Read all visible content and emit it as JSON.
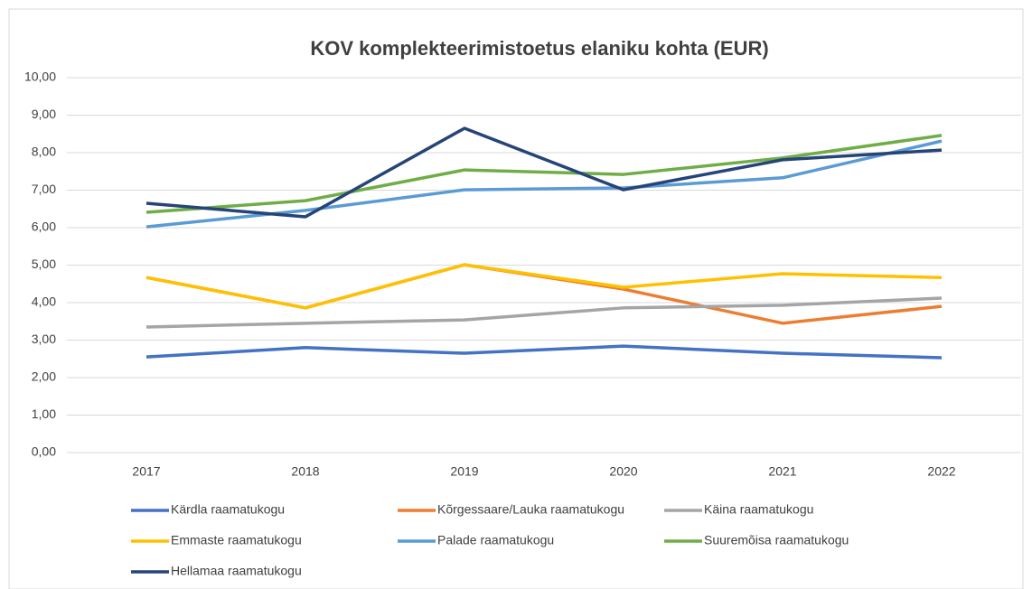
{
  "chart_data": {
    "type": "line",
    "title": "KOV komplekteerimistoetus elaniku kohta (EUR)",
    "categories": [
      "2017",
      "2018",
      "2019",
      "2020",
      "2021",
      "2022"
    ],
    "series": [
      {
        "name": "Kärdla raamatukogu",
        "color": "#4472c4",
        "values": [
          2.55,
          2.8,
          2.65,
          2.84,
          2.65,
          2.53
        ]
      },
      {
        "name": "Kõrgessaare/Lauka raamatukogu",
        "color": "#ed7d31",
        "values": [
          4.67,
          3.86,
          5.01,
          4.36,
          3.45,
          3.9
        ]
      },
      {
        "name": "Käina raamatukogu",
        "color": "#a5a5a5",
        "values": [
          3.35,
          3.45,
          3.54,
          3.86,
          3.93,
          4.12
        ]
      },
      {
        "name": "Emmaste raamatukogu",
        "color": "#ffc000",
        "values": [
          4.67,
          3.86,
          5.01,
          4.41,
          4.77,
          4.67
        ]
      },
      {
        "name": "Palade raamatukogu",
        "color": "#5b9bd5",
        "values": [
          6.02,
          6.46,
          7.01,
          7.06,
          7.33,
          8.31
        ]
      },
      {
        "name": "Suuremõisa raamatukogu",
        "color": "#70ad47",
        "values": [
          6.41,
          6.72,
          7.54,
          7.42,
          7.86,
          8.46
        ]
      },
      {
        "name": "Hellamaa raamatukogu",
        "color": "#264478",
        "values": [
          6.65,
          6.29,
          8.65,
          7.01,
          7.81,
          8.07
        ]
      }
    ],
    "ylim": [
      0,
      10
    ],
    "yticks": [
      {
        "value": 0,
        "label": "0,00"
      },
      {
        "value": 1,
        "label": "1,00"
      },
      {
        "value": 2,
        "label": "2,00"
      },
      {
        "value": 3,
        "label": "3,00"
      },
      {
        "value": 4,
        "label": "4,00"
      },
      {
        "value": 5,
        "label": "5,00"
      },
      {
        "value": 6,
        "label": "6,00"
      },
      {
        "value": 7,
        "label": "7,00"
      },
      {
        "value": 8,
        "label": "8,00"
      },
      {
        "value": 9,
        "label": "9,00"
      },
      {
        "value": 10,
        "label": "10,00"
      }
    ],
    "grid": true,
    "legend": "bottom"
  }
}
